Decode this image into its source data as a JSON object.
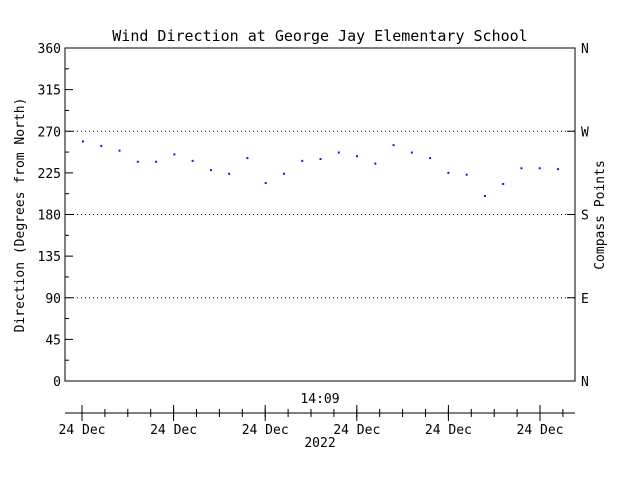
{
  "chart_data": {
    "type": "scatter",
    "title": "Wind Direction at George Jay Elementary School",
    "ylabel": "Direction (Degrees from North)",
    "y2label": "Compass Points",
    "ylim": [
      0,
      360
    ],
    "yticks": [
      0,
      45,
      90,
      135,
      180,
      225,
      270,
      315,
      360
    ],
    "y2ticks": [
      {
        "value": 0,
        "label": "N"
      },
      {
        "value": 90,
        "label": "E"
      },
      {
        "value": 180,
        "label": "S"
      },
      {
        "value": 270,
        "label": "W"
      },
      {
        "value": 360,
        "label": "N"
      }
    ],
    "grid_lines": [
      90,
      180,
      270
    ],
    "time_label": "14:09",
    "xtick_labels": [
      "24 Dec",
      "24 Dec",
      "24 Dec",
      "24 Dec",
      "24 Dec",
      "24 Dec"
    ],
    "year_label": "2022",
    "point_color": "#3300ff",
    "series": [
      {
        "values": [
          259,
          254,
          249,
          237,
          237,
          245,
          238,
          228,
          224,
          241,
          214,
          224,
          238,
          240,
          247,
          243,
          235,
          255,
          247,
          241,
          225,
          223,
          200,
          213,
          230,
          230,
          229
        ]
      }
    ]
  }
}
